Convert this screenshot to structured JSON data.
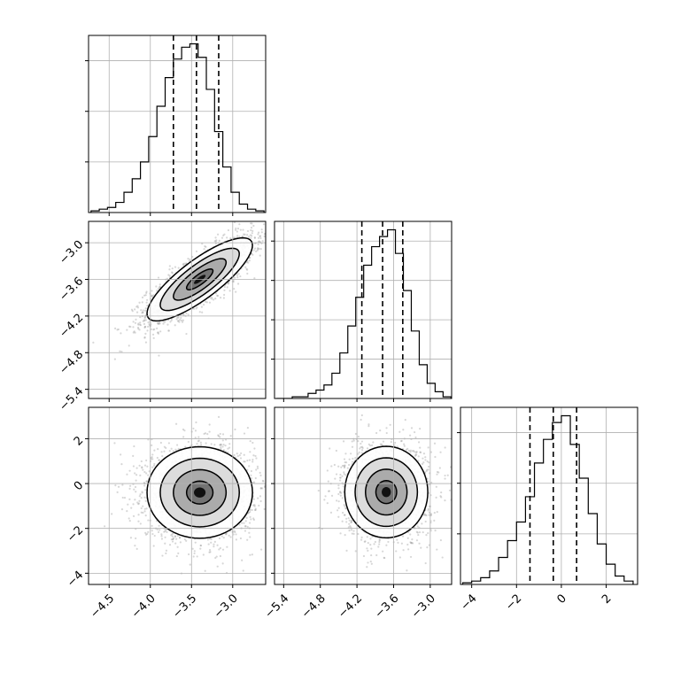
{
  "chart_data": {
    "type": "corner",
    "grid": true,
    "parameters": [
      {
        "ticks": [
          -4.5,
          -4.0,
          -3.5,
          -3.0
        ],
        "tick_labels": [
          "−4.5",
          "−4.0",
          "−3.5",
          "−3.0"
        ],
        "range": [
          -4.75,
          -2.6
        ]
      },
      {
        "ticks": [
          -5.4,
          -4.8,
          -4.2,
          -3.6,
          -3.0
        ],
        "tick_labels": [
          "−5.4",
          "−4.8",
          "−4.2",
          "−3.6",
          "−3.0"
        ],
        "range": [
          -5.55,
          -2.65
        ]
      },
      {
        "ticks": [
          -4,
          -2,
          0,
          2
        ],
        "tick_labels": [
          "−4",
          "−2",
          "0",
          "2"
        ],
        "range": [
          -4.5,
          3.4
        ]
      }
    ],
    "histograms": [
      {
        "param": 0,
        "bin_edges": [
          -4.72,
          -4.62,
          -4.52,
          -4.42,
          -4.32,
          -4.22,
          -4.12,
          -4.02,
          -3.92,
          -3.82,
          -3.72,
          -3.62,
          -3.52,
          -3.42,
          -3.32,
          -3.22,
          -3.12,
          -3.02,
          -2.92,
          -2.82,
          -2.72,
          -2.62
        ],
        "counts": [
          0.01,
          0.02,
          0.03,
          0.06,
          0.12,
          0.2,
          0.3,
          0.45,
          0.63,
          0.8,
          0.91,
          0.98,
          1.0,
          0.92,
          0.73,
          0.48,
          0.27,
          0.12,
          0.05,
          0.02,
          0.01
        ],
        "quantiles": [
          -3.72,
          -3.44,
          -3.17
        ],
        "y_ticks_count": 3
      },
      {
        "param": 1,
        "bin_edges": [
          -5.52,
          -5.39,
          -5.26,
          -5.13,
          -5.0,
          -4.87,
          -4.74,
          -4.61,
          -4.48,
          -4.35,
          -4.22,
          -4.09,
          -3.96,
          -3.83,
          -3.7,
          -3.57,
          -3.44,
          -3.31,
          -3.18,
          -3.05,
          -2.92,
          -2.79,
          -2.66
        ],
        "counts": [
          0.0,
          0.0,
          0.01,
          0.01,
          0.03,
          0.05,
          0.08,
          0.15,
          0.27,
          0.43,
          0.6,
          0.79,
          0.9,
          0.96,
          1.0,
          0.86,
          0.64,
          0.4,
          0.2,
          0.09,
          0.04,
          0.01
        ],
        "quantiles": [
          -4.12,
          -3.78,
          -3.45
        ],
        "y_ticks_count": 4
      },
      {
        "param": 2,
        "bin_edges": [
          -4.4,
          -4.0,
          -3.6,
          -3.2,
          -2.8,
          -2.4,
          -2.0,
          -1.6,
          -1.2,
          -0.8,
          -0.4,
          0.0,
          0.4,
          0.8,
          1.2,
          1.6,
          2.0,
          2.4,
          2.8,
          3.2
        ],
        "counts": [
          0.01,
          0.02,
          0.04,
          0.08,
          0.16,
          0.26,
          0.37,
          0.52,
          0.72,
          0.86,
          0.96,
          1.0,
          0.83,
          0.63,
          0.42,
          0.24,
          0.12,
          0.05,
          0.02
        ],
        "quantiles": [
          -1.4,
          -0.36,
          0.68
        ],
        "y_ticks_count": 3
      }
    ],
    "joint_2d": [
      {
        "x_param": 0,
        "y_param": 1,
        "center": [
          -3.4,
          -3.6
        ],
        "sd": [
          0.32,
          0.34
        ],
        "corr": 0.82
      },
      {
        "x_param": 0,
        "y_param": 2,
        "center": [
          -3.4,
          -0.4
        ],
        "sd": [
          0.32,
          1.02
        ],
        "corr": 0.0
      },
      {
        "x_param": 1,
        "y_param": 2,
        "center": [
          -3.72,
          -0.38
        ],
        "sd": [
          0.34,
          1.02
        ],
        "corr": 0.0
      }
    ],
    "contour_levels_sigma": [
      0.5,
      1.0,
      1.5,
      2.0
    ]
  }
}
